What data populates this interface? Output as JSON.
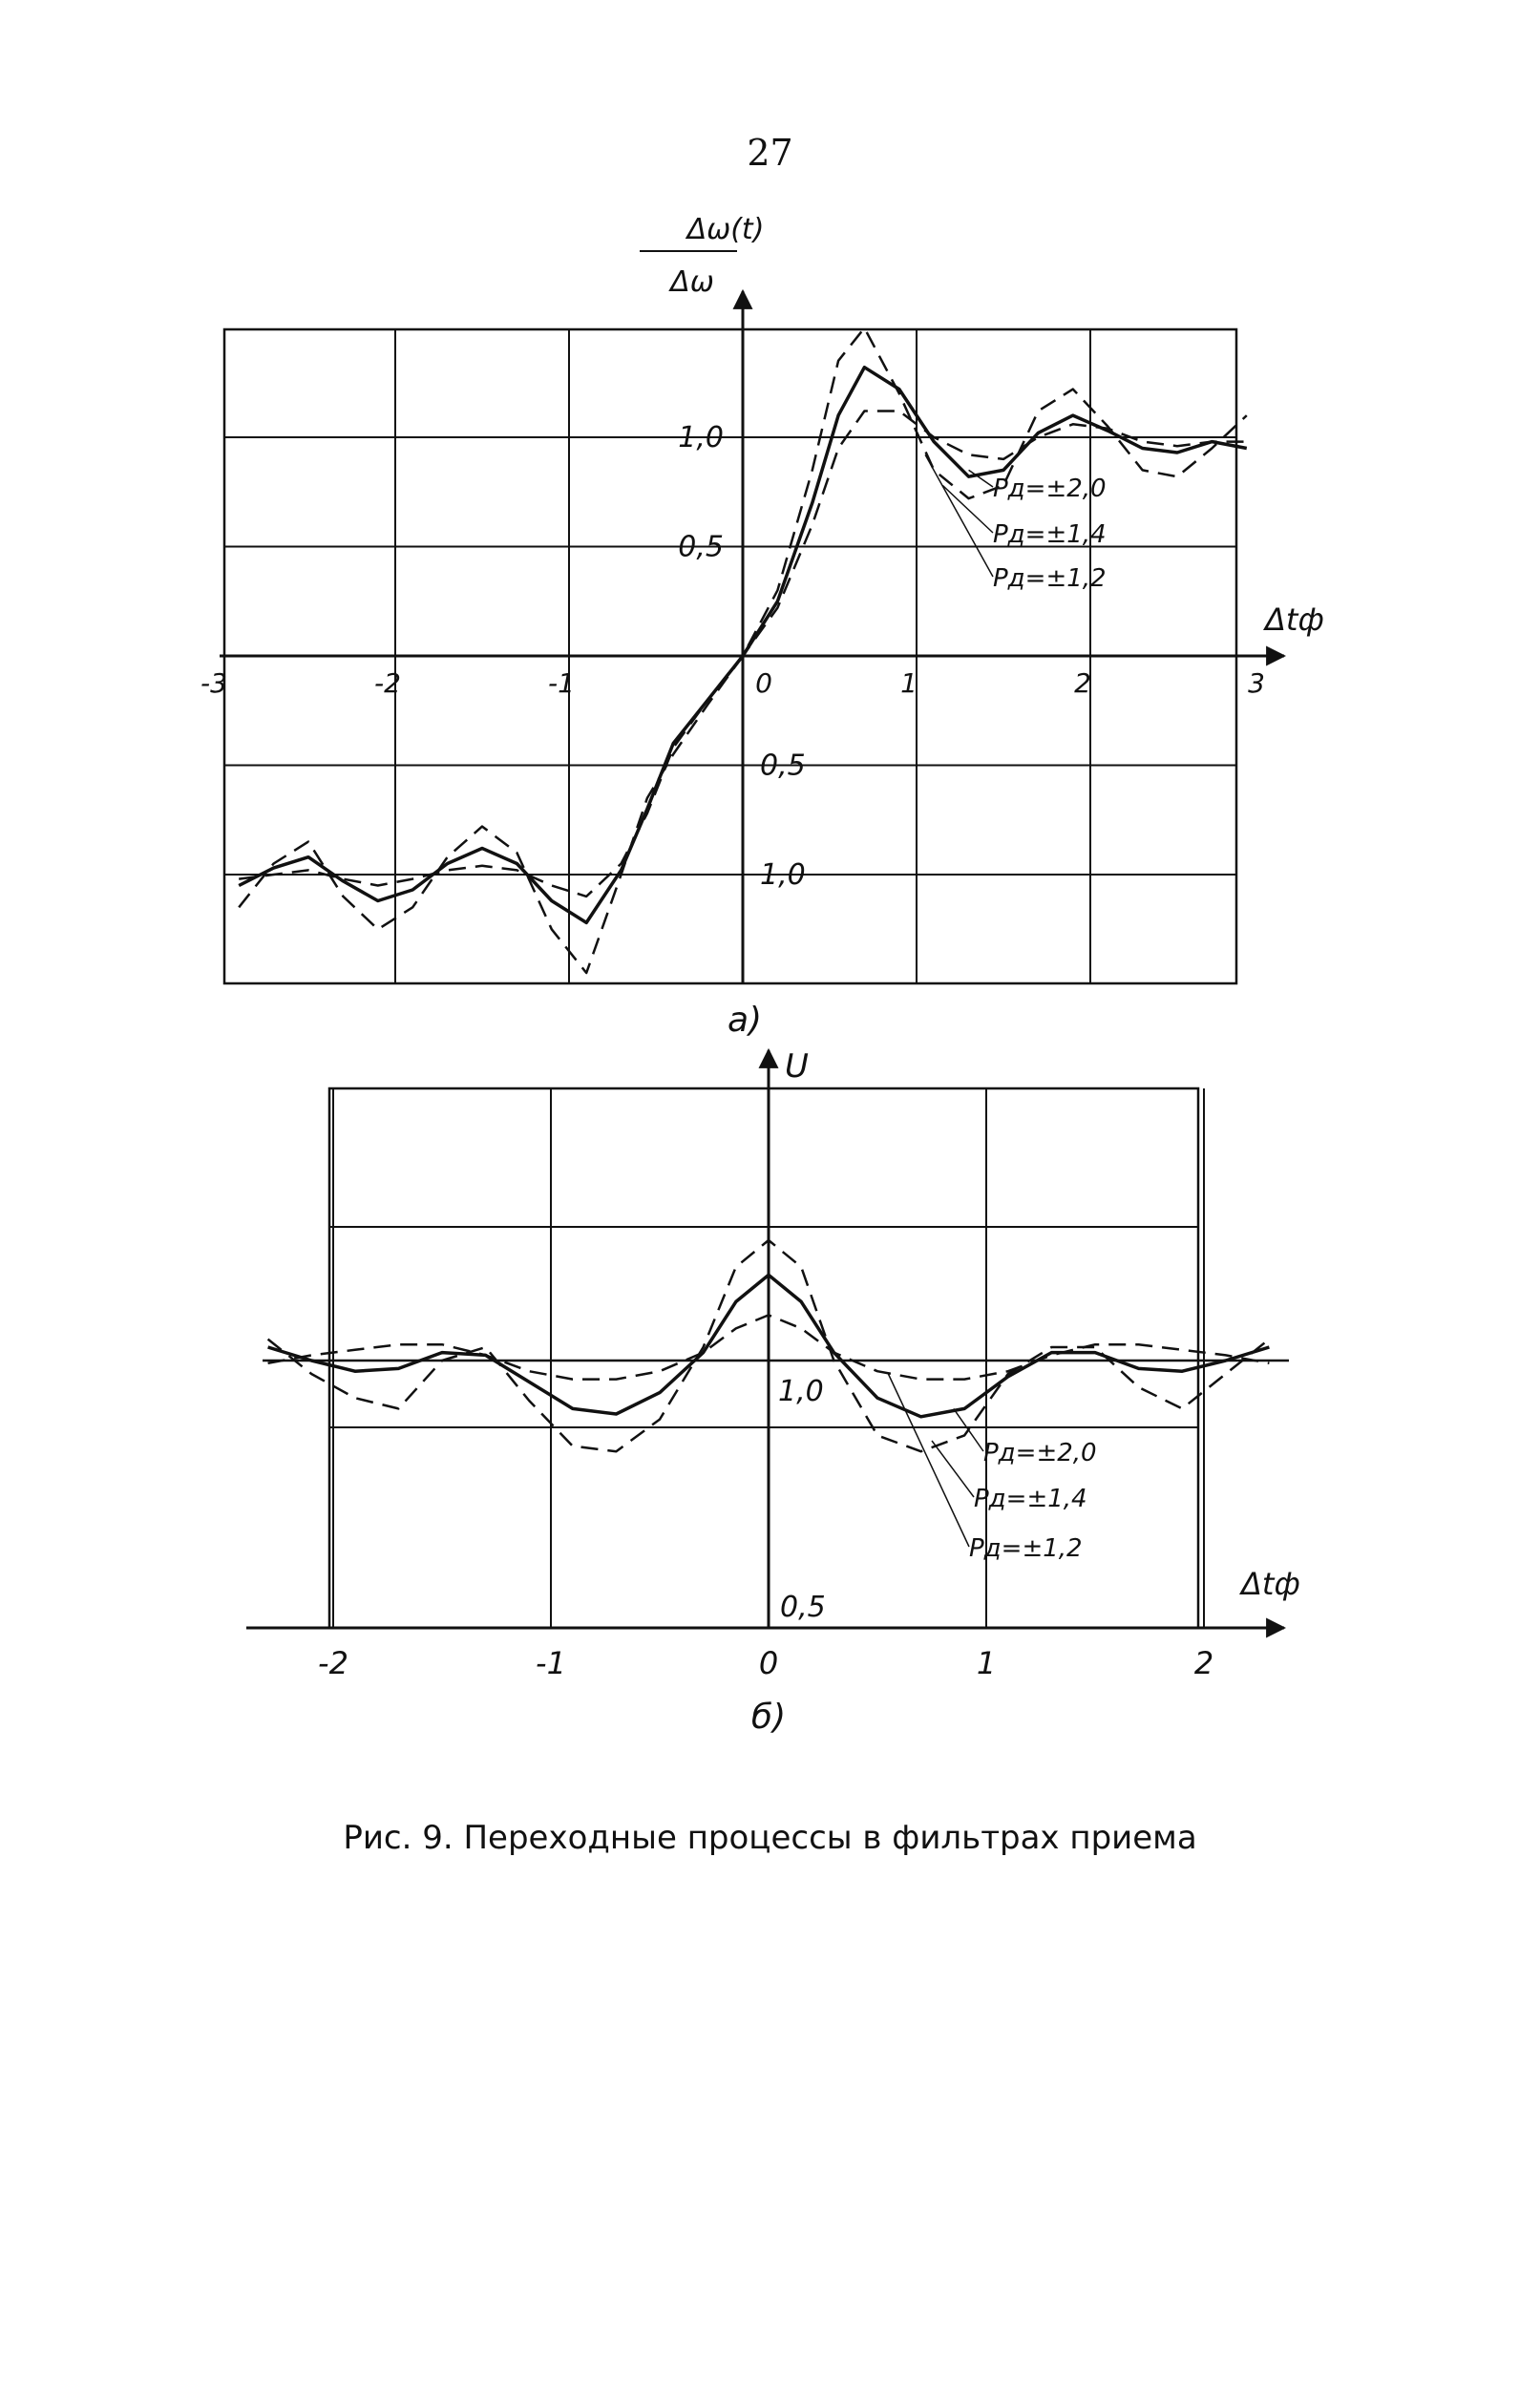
{
  "page_number": "27",
  "caption": "Рис. 9. Переходные процессы в фильтрах приема",
  "chart_data": [
    {
      "type": "line",
      "panel_label": "а)",
      "ylabel_num": "Δω(t)",
      "ylabel_den": "Δω",
      "xlabel": "Δtф",
      "x_ticks": [
        "-3",
        "-2",
        "-1",
        "0",
        "1",
        "2",
        "3"
      ],
      "y_ticks_pos": [
        "1,0",
        "0,5"
      ],
      "y_ticks_neg": [
        "0,5",
        "1,0"
      ],
      "xlim": [
        -3,
        3
      ],
      "ylim": [
        -1.45,
        1.5
      ],
      "grid": true,
      "series": [
        {
          "name": "Pд = ±2,0",
          "label_text": "Pд=±2,0",
          "style": "solid",
          "x": [
            -2.9,
            -2.7,
            -2.5,
            -2.3,
            -2.1,
            -1.9,
            -1.7,
            -1.5,
            -1.3,
            -1.1,
            -0.9,
            -0.7,
            -0.55,
            -0.4,
            -0.2,
            0,
            0.2,
            0.4,
            0.55,
            0.7,
            0.9,
            1.1,
            1.3,
            1.5,
            1.7,
            1.9,
            2.1,
            2.3,
            2.5,
            2.7,
            2.9
          ],
          "y": [
            -1.05,
            -0.97,
            -0.92,
            -1.03,
            -1.12,
            -1.07,
            -0.95,
            -0.88,
            -0.95,
            -1.12,
            -1.22,
            -0.98,
            -0.7,
            -0.4,
            -0.2,
            0,
            0.25,
            0.7,
            1.1,
            1.32,
            1.22,
            0.98,
            0.82,
            0.85,
            1.02,
            1.1,
            1.03,
            0.95,
            0.93,
            0.98,
            0.95
          ]
        },
        {
          "name": "Pд = ±1,4",
          "label_text": "Pд=±1,4",
          "style": "dashed",
          "x": [
            -2.9,
            -2.7,
            -2.5,
            -2.3,
            -2.1,
            -1.9,
            -1.7,
            -1.5,
            -1.3,
            -1.1,
            -0.9,
            -0.7,
            -0.55,
            -0.4,
            -0.2,
            0,
            0.2,
            0.4,
            0.55,
            0.7,
            0.9,
            1.1,
            1.3,
            1.5,
            1.7,
            1.9,
            2.1,
            2.3,
            2.5,
            2.7,
            2.9
          ],
          "y": [
            -1.15,
            -0.95,
            -0.85,
            -1.1,
            -1.25,
            -1.15,
            -0.92,
            -0.78,
            -0.9,
            -1.25,
            -1.45,
            -1.0,
            -0.65,
            -0.45,
            -0.22,
            0,
            0.3,
            0.85,
            1.35,
            1.5,
            1.2,
            0.85,
            0.72,
            0.78,
            1.12,
            1.22,
            1.05,
            0.85,
            0.82,
            0.95,
            1.1
          ]
        },
        {
          "name": "Pд = ±1,2",
          "label_text": "Pд=±1,2",
          "style": "dashed",
          "x": [
            -2.9,
            -2.7,
            -2.5,
            -2.3,
            -2.1,
            -1.9,
            -1.7,
            -1.5,
            -1.3,
            -1.1,
            -0.9,
            -0.7,
            -0.55,
            -0.4,
            -0.2,
            0,
            0.2,
            0.4,
            0.55,
            0.7,
            0.9,
            1.1,
            1.3,
            1.5,
            1.7,
            1.9,
            2.1,
            2.3,
            2.5,
            2.7,
            2.9
          ],
          "y": [
            -1.02,
            -1.0,
            -0.98,
            -1.02,
            -1.05,
            -1.02,
            -0.98,
            -0.96,
            -0.98,
            -1.05,
            -1.1,
            -0.95,
            -0.72,
            -0.42,
            -0.2,
            0,
            0.22,
            0.6,
            0.95,
            1.12,
            1.12,
            1.0,
            0.92,
            0.9,
            1.0,
            1.06,
            1.04,
            0.98,
            0.96,
            0.98,
            0.98
          ]
        }
      ]
    },
    {
      "type": "line",
      "panel_label": "б)",
      "ylabel": "U",
      "xlabel": "Δtф",
      "x_ticks": [
        "-2",
        "-1",
        "0",
        "1",
        "2"
      ],
      "y_tick_labels": [
        "1,0",
        "0,5"
      ],
      "xlim": [
        -2.2,
        2.2
      ],
      "ylim": [
        0.5,
        1.6
      ],
      "grid": true,
      "series": [
        {
          "name": "Pд = ±2,0",
          "label_text": "Pд=±2,0",
          "style": "solid",
          "x": [
            -2.3,
            -2.1,
            -1.9,
            -1.7,
            -1.5,
            -1.3,
            -1.1,
            -0.9,
            -0.7,
            -0.5,
            -0.3,
            -0.15,
            0,
            0.15,
            0.3,
            0.5,
            0.7,
            0.9,
            1.1,
            1.3,
            1.5,
            1.7,
            1.9,
            2.1,
            2.3
          ],
          "y": [
            1.05,
            1.0,
            0.96,
            0.97,
            1.03,
            1.02,
            0.92,
            0.82,
            0.8,
            0.88,
            1.03,
            1.22,
            1.32,
            1.22,
            1.03,
            0.86,
            0.79,
            0.82,
            0.94,
            1.03,
            1.03,
            0.97,
            0.96,
            1.0,
            1.05
          ]
        },
        {
          "name": "Pд = ±1,4",
          "label_text": "Pд=±1,4",
          "style": "dashed",
          "x": [
            -2.3,
            -2.1,
            -1.9,
            -1.7,
            -1.5,
            -1.3,
            -1.1,
            -0.9,
            -0.7,
            -0.5,
            -0.3,
            -0.15,
            0,
            0.15,
            0.3,
            0.5,
            0.7,
            0.9,
            1.1,
            1.3,
            1.5,
            1.7,
            1.9,
            2.1,
            2.3
          ],
          "y": [
            1.08,
            0.95,
            0.86,
            0.82,
            1.0,
            1.05,
            0.85,
            0.68,
            0.66,
            0.78,
            1.05,
            1.35,
            1.45,
            1.35,
            1.0,
            0.72,
            0.66,
            0.72,
            0.95,
            1.05,
            1.05,
            0.9,
            0.82,
            0.95,
            1.08
          ]
        },
        {
          "name": "Pд = ±1,2",
          "label_text": "Pд=±1,2",
          "style": "dashed",
          "x": [
            -2.3,
            -2.1,
            -1.9,
            -1.7,
            -1.5,
            -1.3,
            -1.1,
            -0.9,
            -0.7,
            -0.5,
            -0.3,
            -0.15,
            0,
            0.15,
            0.3,
            0.5,
            0.7,
            0.9,
            1.1,
            1.3,
            1.5,
            1.7,
            1.9,
            2.1,
            2.3
          ],
          "y": [
            0.99,
            1.02,
            1.04,
            1.06,
            1.06,
            1.02,
            0.96,
            0.93,
            0.93,
            0.96,
            1.03,
            1.12,
            1.17,
            1.12,
            1.03,
            0.96,
            0.93,
            0.93,
            0.96,
            1.02,
            1.06,
            1.06,
            1.04,
            1.02,
            0.99
          ]
        }
      ]
    }
  ]
}
